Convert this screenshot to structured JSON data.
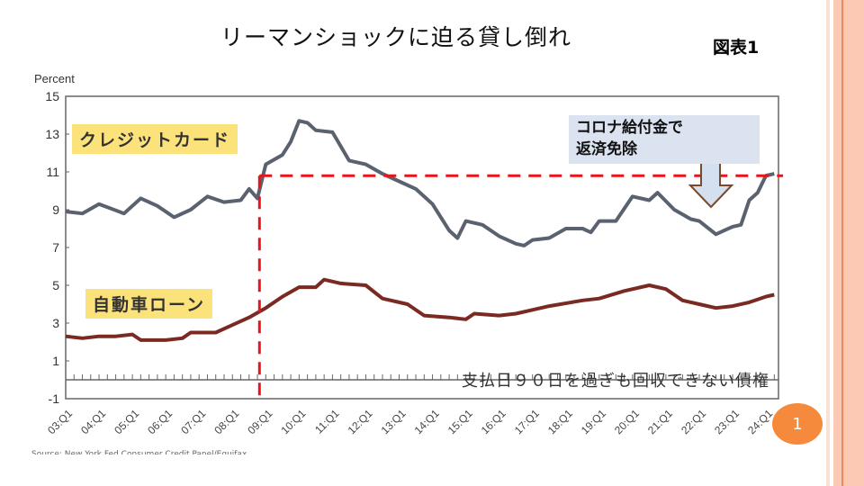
{
  "slide": {
    "title": "リーマンショックに迫る貸し倒れ",
    "figure_label": "図表1",
    "page_number": "1",
    "source": "Source: New York Fed Consumer Credit Panel/Equifax",
    "accent_colors": {
      "border_pink": "#fcc9b5",
      "border_line": "#e88a5c",
      "page_badge": "#f58a3c"
    }
  },
  "annotations": {
    "credit_card_label": "クレジットカード",
    "auto_loan_label": "自動車ローン",
    "covid_note": "コロナ給付金で\n返済免除",
    "baseline_note": "支払日９０日を過ぎも回収できない債権",
    "reference_level": 10.8,
    "reference_start": "09:Q1"
  },
  "chart_data": {
    "type": "line",
    "ylabel": "Percent",
    "ylim": [
      -1,
      15
    ],
    "yticks": [
      -1,
      1,
      3,
      5,
      7,
      9,
      11,
      13,
      15
    ],
    "xlim": [
      2003,
      2024.4
    ],
    "xticks": [
      "03:Q1",
      "04:Q1",
      "05:Q1",
      "06:Q1",
      "07:Q1",
      "08:Q1",
      "09:Q1",
      "10:Q1",
      "11:Q1",
      "12:Q1",
      "13:Q1",
      "14:Q1",
      "15:Q1",
      "16:Q1",
      "17:Q1",
      "18:Q1",
      "19:Q1",
      "20:Q1",
      "21:Q1",
      "22:Q1",
      "23:Q1",
      "24:Q1"
    ],
    "grid": false,
    "series": [
      {
        "name": "クレジットカード",
        "color": "#5a6270",
        "x": [
          2003,
          2003.5,
          2004,
          2004.75,
          2005.25,
          2005.75,
          2006.25,
          2006.75,
          2007.25,
          2007.75,
          2008.25,
          2008.5,
          2008.75,
          2009,
          2009.5,
          2009.75,
          2010,
          2010.25,
          2010.5,
          2011,
          2011.5,
          2012,
          2012.5,
          2013,
          2013.5,
          2014,
          2014.5,
          2014.75,
          2015,
          2015.5,
          2016,
          2016.5,
          2016.75,
          2017,
          2017.5,
          2018,
          2018.5,
          2018.75,
          2019,
          2019.5,
          2020,
          2020.5,
          2020.75,
          2021.25,
          2021.75,
          2022,
          2022.5,
          2022.75,
          2023,
          2023.25,
          2023.5,
          2023.75,
          2024,
          2024.25
        ],
        "y": [
          8.9,
          8.8,
          9.3,
          8.8,
          9.6,
          9.2,
          8.6,
          9.0,
          9.7,
          9.4,
          9.5,
          10.1,
          9.6,
          11.4,
          11.9,
          12.6,
          13.7,
          13.6,
          13.2,
          13.1,
          11.6,
          11.4,
          10.9,
          10.5,
          10.1,
          9.3,
          7.9,
          7.5,
          8.4,
          8.2,
          7.6,
          7.2,
          7.1,
          7.4,
          7.5,
          8.0,
          8.0,
          7.8,
          8.4,
          8.4,
          9.7,
          9.5,
          9.9,
          9.0,
          8.5,
          8.4,
          7.7,
          7.9,
          8.1,
          8.2,
          9.5,
          9.9,
          10.8,
          10.9
        ]
      },
      {
        "name": "自動車ローン",
        "color": "#7a2a22",
        "x": [
          2003,
          2003.5,
          2004,
          2004.5,
          2005,
          2005.25,
          2006,
          2006.5,
          2006.75,
          2007.5,
          2008,
          2008.5,
          2009,
          2009.5,
          2010,
          2010.5,
          2010.75,
          2011.25,
          2012,
          2012.5,
          2013.25,
          2013.75,
          2014.5,
          2015,
          2015.25,
          2016,
          2016.5,
          2017,
          2017.5,
          2018.5,
          2019,
          2019.75,
          2020.5,
          2021,
          2021.5,
          2022,
          2022.5,
          2023,
          2023.5,
          2024,
          2024.25
        ],
        "y": [
          2.3,
          2.2,
          2.3,
          2.3,
          2.4,
          2.1,
          2.1,
          2.2,
          2.5,
          2.5,
          2.9,
          3.3,
          3.8,
          4.4,
          4.9,
          4.9,
          5.3,
          5.1,
          5.0,
          4.3,
          4.0,
          3.4,
          3.3,
          3.2,
          3.5,
          3.4,
          3.5,
          3.7,
          3.9,
          4.2,
          4.3,
          4.7,
          5.0,
          4.8,
          4.2,
          4.0,
          3.8,
          3.9,
          4.1,
          4.4,
          4.5
        ]
      }
    ]
  }
}
